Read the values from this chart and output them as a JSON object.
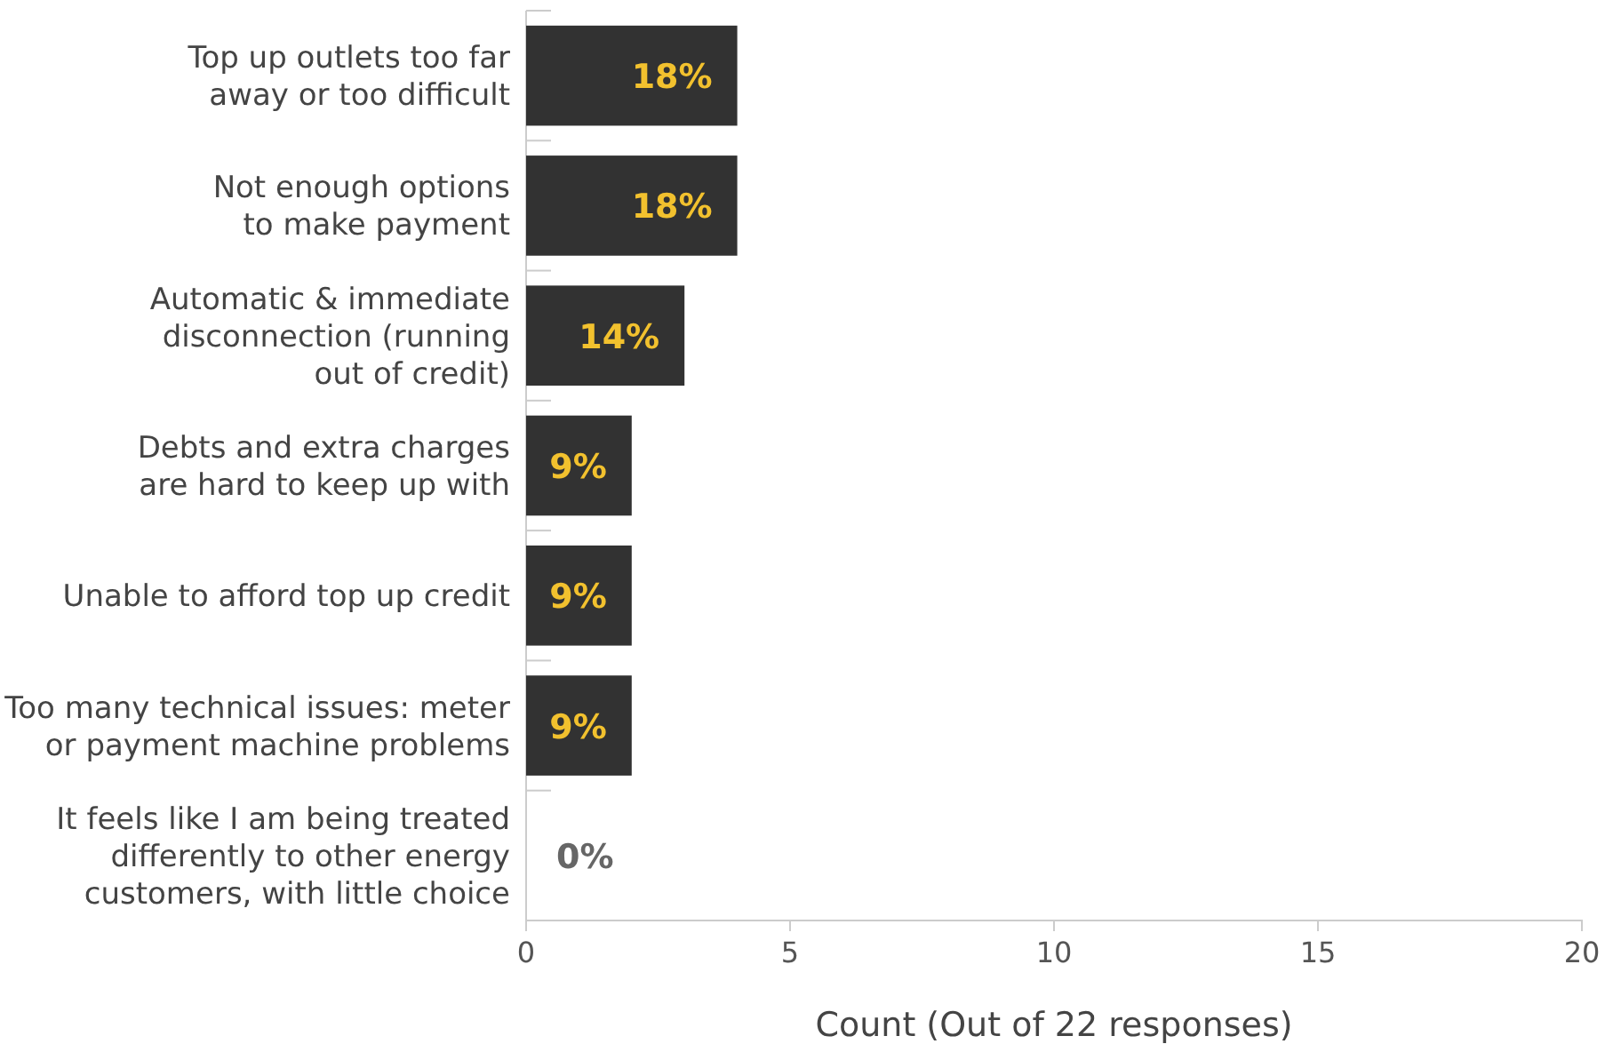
{
  "chart_data": {
    "type": "bar",
    "orientation": "horizontal",
    "categories": [
      "Top up outlets too far\naway or too difficult",
      "Not enough options\nto make payment",
      "Automatic & immediate\ndisconnection (running\nout of credit)",
      "Debts and extra charges\nare hard to keep up with",
      "Unable to afford top up credit",
      "Too many technical issues: meter\nor payment machine problems",
      "It feels like I am being treated\ndifferently to other energy\ncustomers, with little choice"
    ],
    "values": [
      4,
      4,
      3,
      2,
      2,
      2,
      0
    ],
    "annotations": [
      {
        "text": "18%",
        "x": 4,
        "y": "Top up outlets too far\naway or too difficult"
      },
      {
        "text": "18%",
        "x": 4,
        "y": "Not enough options\nto make payment"
      },
      {
        "text": "14%",
        "x": 3,
        "y": "Automatic & immediate\ndisconnection (running\nout of credit)"
      },
      {
        "text": "9%",
        "x": 2,
        "y": "Debts and extra charges\nare hard to keep up with"
      },
      {
        "text": "9%",
        "x": 2,
        "y": "Unable to afford top up credit"
      },
      {
        "text": "9%",
        "x": 2,
        "y": "Too many technical issues: meter\nor payment machine problems"
      },
      {
        "text": "0%",
        "x": 0,
        "y": "It feels like I am being treated\ndifferently to other energy\ncustomers, with little choice"
      }
    ],
    "color": "#323232",
    "xlabel": "Count (Out of 22 responses)",
    "xlim": [
      0,
      20
    ],
    "xticks": [
      0,
      5,
      10,
      15,
      20
    ],
    "grid": false
  }
}
